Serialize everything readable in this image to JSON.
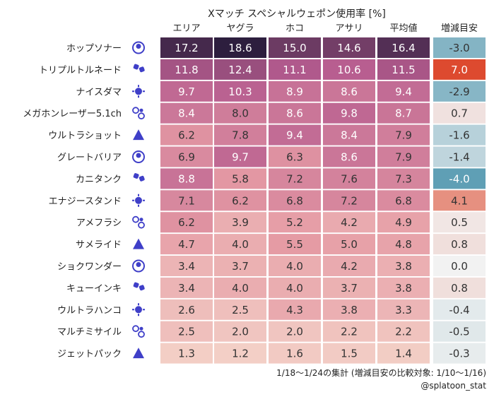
{
  "chart_data": {
    "type": "heatmap",
    "title": "Xマッチ スペシャルウェポン使用率 [%]",
    "columns": [
      "エリア",
      "ヤグラ",
      "ホコ",
      "アサリ",
      "平均値",
      "増減目安"
    ],
    "rows": [
      {
        "name": "ホップソナー",
        "icon": "hop-sonar-icon",
        "values": [
          17.2,
          18.6,
          15.0,
          14.6,
          16.4,
          -3.0
        ]
      },
      {
        "name": "トリプルトルネード",
        "icon": "triple-tornado-icon",
        "values": [
          11.8,
          12.4,
          11.1,
          10.6,
          11.5,
          7.0
        ]
      },
      {
        "name": "ナイスダマ",
        "icon": "nice-dama-icon",
        "values": [
          9.7,
          10.3,
          8.9,
          8.6,
          9.4,
          -2.9
        ]
      },
      {
        "name": "メガホンレーザー5.1ch",
        "icon": "megaphone-laser-icon",
        "values": [
          8.4,
          8.0,
          8.6,
          9.8,
          8.7,
          0.7
        ]
      },
      {
        "name": "ウルトラショット",
        "icon": "ultra-shot-icon",
        "values": [
          6.2,
          7.8,
          9.4,
          8.4,
          7.9,
          -1.6
        ]
      },
      {
        "name": "グレートバリア",
        "icon": "great-barrier-icon",
        "values": [
          6.9,
          9.7,
          6.3,
          8.6,
          7.9,
          -1.4
        ]
      },
      {
        "name": "カニタンク",
        "icon": "crab-tank-icon",
        "values": [
          8.8,
          5.8,
          7.2,
          7.6,
          7.3,
          -4.0
        ]
      },
      {
        "name": "エナジースタンド",
        "icon": "energy-stand-icon",
        "values": [
          7.1,
          6.2,
          6.8,
          7.2,
          6.8,
          4.1
        ]
      },
      {
        "name": "アメフラシ",
        "icon": "ink-storm-icon",
        "values": [
          6.2,
          3.9,
          5.2,
          4.2,
          4.9,
          0.5
        ]
      },
      {
        "name": "サメライド",
        "icon": "reefslider-icon",
        "values": [
          4.7,
          4.0,
          5.5,
          5.0,
          4.8,
          0.8
        ]
      },
      {
        "name": "ショクワンダー",
        "icon": "zipcaster-icon",
        "values": [
          3.4,
          3.7,
          4.0,
          4.2,
          3.8,
          0.0
        ]
      },
      {
        "name": "キューインキ",
        "icon": "ink-vac-icon",
        "values": [
          3.4,
          4.0,
          4.0,
          3.7,
          3.8,
          0.8
        ]
      },
      {
        "name": "ウルトラハンコ",
        "icon": "ultra-stamp-icon",
        "values": [
          2.6,
          2.5,
          4.3,
          3.8,
          3.3,
          -0.4
        ]
      },
      {
        "name": "マルチミサイル",
        "icon": "tenta-missiles-icon",
        "values": [
          2.5,
          2.0,
          2.0,
          2.2,
          2.2,
          -0.5
        ]
      },
      {
        "name": "ジェットパック",
        "icon": "inkjet-icon",
        "values": [
          1.3,
          1.2,
          1.6,
          1.5,
          1.4,
          -0.3
        ]
      }
    ],
    "usage_range": [
      1.2,
      18.6
    ],
    "delta_range": [
      -4.0,
      7.0
    ],
    "colors": {
      "usage_low": "#f3cfc6",
      "usage_mid1": "#e59aa4",
      "usage_mid2": "#b65c8f",
      "usage_high": "#2d1e3e",
      "delta_negative": "#5f9fb5",
      "delta_zero": "#f2f2f2",
      "delta_positive": "#dd4a2f",
      "icon": "#3f3fc8"
    },
    "footnote": "1/18〜1/24の集計 (増減目安の比較対象: 1/10〜1/16)",
    "credit": "@splatoon_stat"
  }
}
